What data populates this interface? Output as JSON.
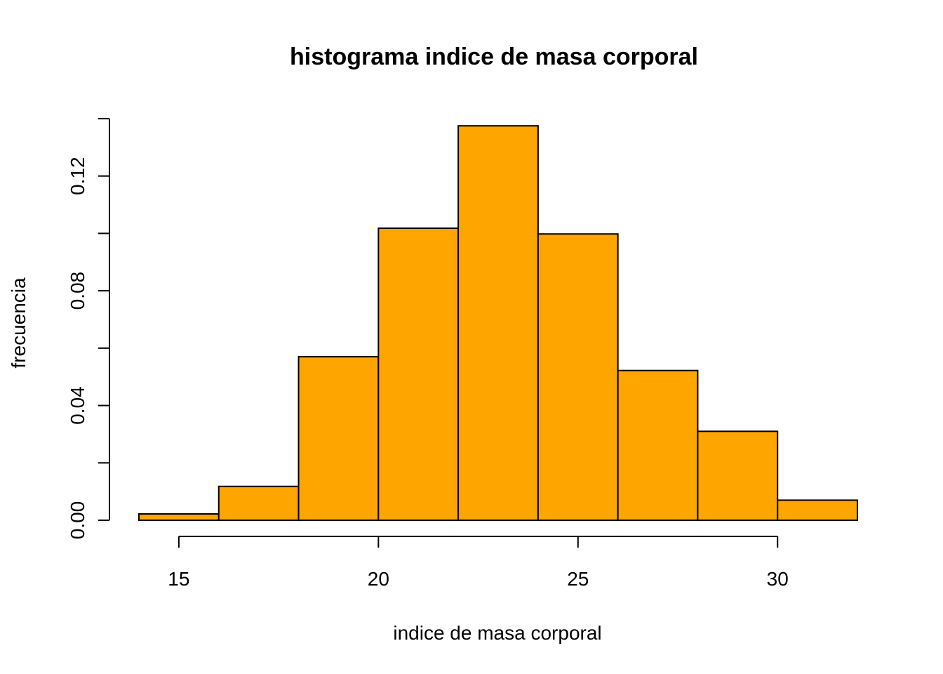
{
  "chart_data": {
    "type": "bar",
    "title": "histograma indice de masa corporal",
    "xlabel": "indice de masa corporal",
    "ylabel": "frecuencia",
    "bins": [
      {
        "from": 14,
        "to": 16,
        "value": 0.0022
      },
      {
        "from": 16,
        "to": 18,
        "value": 0.0118
      },
      {
        "from": 18,
        "to": 20,
        "value": 0.057
      },
      {
        "from": 20,
        "to": 22,
        "value": 0.1018
      },
      {
        "from": 22,
        "to": 24,
        "value": 0.1375
      },
      {
        "from": 24,
        "to": 26,
        "value": 0.0998
      },
      {
        "from": 26,
        "to": 28,
        "value": 0.0522
      },
      {
        "from": 28,
        "to": 30,
        "value": 0.031
      },
      {
        "from": 30,
        "to": 32,
        "value": 0.007
      }
    ],
    "xlim": [
      14,
      32
    ],
    "ylim": [
      0,
      0.14
    ],
    "x_ticks": [
      15,
      20,
      25,
      30
    ],
    "y_ticks": [
      0.0,
      0.02,
      0.04,
      0.06,
      0.08,
      0.1,
      0.12,
      0.14
    ],
    "y_tick_labels": [
      "0.00",
      "",
      "0.04",
      "",
      "0.08",
      "",
      "0.12",
      ""
    ],
    "colors": {
      "bar_fill": "#FFA500",
      "bar_stroke": "#000000"
    },
    "grid": false,
    "legend": "none"
  }
}
